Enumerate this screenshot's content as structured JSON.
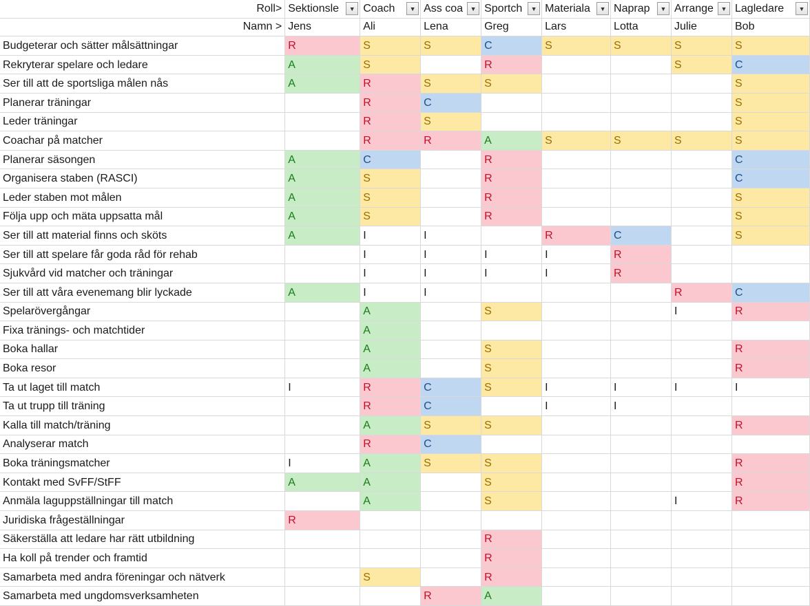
{
  "header": {
    "role_label": "Roll>",
    "name_label": "Namn >",
    "columns": [
      {
        "role": "Sektionsle",
        "name": "Jens"
      },
      {
        "role": "Coach",
        "name": "Ali"
      },
      {
        "role": "Ass coa",
        "name": "Lena"
      },
      {
        "role": "Sportch",
        "name": "Greg"
      },
      {
        "role": "Materiala",
        "name": "Lars"
      },
      {
        "role": "Naprap",
        "name": "Lotta"
      },
      {
        "role": "Arrange",
        "name": "Julie"
      },
      {
        "role": "Lagledare",
        "name": "Bob"
      }
    ]
  },
  "legend_colors": {
    "R": "#fcc8d0",
    "S": "#fde9a3",
    "C": "#bfd7f0",
    "A": "#c7ecc6"
  },
  "rows": [
    {
      "task": "Budgeterar och sätter målsättningar",
      "cells": [
        "R",
        "S",
        "S",
        "C",
        "S",
        "S",
        "S",
        "S"
      ]
    },
    {
      "task": "Rekryterar spelare och ledare",
      "cells": [
        "A",
        "S",
        "",
        "R",
        "",
        "",
        "S",
        "C"
      ]
    },
    {
      "task": "Ser till att de sportsliga målen nås",
      "cells": [
        "A",
        "R",
        "S",
        "S",
        "",
        "",
        "",
        "S"
      ]
    },
    {
      "task": "Planerar träningar",
      "cells": [
        "",
        "R",
        "C",
        "",
        "",
        "",
        "",
        "S"
      ]
    },
    {
      "task": "Leder träningar",
      "cells": [
        "",
        "R",
        "S",
        "",
        "",
        "",
        "",
        "S"
      ]
    },
    {
      "task": "Coachar på matcher",
      "cells": [
        "",
        "R",
        "R",
        "A",
        "S",
        "S",
        "S",
        "S"
      ]
    },
    {
      "task": "Planerar säsongen",
      "cells": [
        "A",
        "C",
        "",
        "R",
        "",
        "",
        "",
        "C"
      ]
    },
    {
      "task": "Organisera staben (RASCI)",
      "cells": [
        "A",
        "S",
        "",
        "R",
        "",
        "",
        "",
        "C"
      ]
    },
    {
      "task": "Leder staben mot målen",
      "cells": [
        "A",
        "S",
        "",
        "R",
        "",
        "",
        "",
        "S"
      ]
    },
    {
      "task": "Följa upp och mäta uppsatta mål",
      "cells": [
        "A",
        "S",
        "",
        "R",
        "",
        "",
        "",
        "S"
      ]
    },
    {
      "task": "Ser till att material finns och sköts",
      "cells": [
        "A",
        "I",
        "I",
        "",
        "R",
        "C",
        "",
        "S"
      ]
    },
    {
      "task": "Ser till att spelare får goda råd för rehab",
      "cells": [
        "",
        "I",
        "I",
        "I",
        "I",
        "R",
        "",
        ""
      ]
    },
    {
      "task": "Sjukvård vid matcher och träningar",
      "cells": [
        "",
        "I",
        "I",
        "I",
        "I",
        "R",
        "",
        ""
      ]
    },
    {
      "task": "Ser till att våra evenemang blir lyckade",
      "cells": [
        "A",
        "I",
        "I",
        "",
        "",
        "",
        "R",
        "C"
      ]
    },
    {
      "task": "Spelarövergångar",
      "cells": [
        "",
        "A",
        "",
        "S",
        "",
        "",
        "I",
        "R"
      ]
    },
    {
      "task": "Fixa tränings- och matchtider",
      "cells": [
        "",
        "A",
        "",
        "",
        "",
        "",
        "",
        ""
      ]
    },
    {
      "task": "Boka hallar",
      "cells": [
        "",
        "A",
        "",
        "S",
        "",
        "",
        "",
        "R"
      ]
    },
    {
      "task": "Boka resor",
      "cells": [
        "",
        "A",
        "",
        "S",
        "",
        "",
        "",
        "R"
      ]
    },
    {
      "task": "Ta ut laget till match",
      "cells": [
        "I",
        "R",
        "C",
        "S",
        "I",
        "I",
        "I",
        "I"
      ]
    },
    {
      "task": "Ta ut trupp till träning",
      "cells": [
        "",
        "R",
        "C",
        "",
        "I",
        "I",
        "",
        ""
      ]
    },
    {
      "task": "Kalla till match/träning",
      "cells": [
        "",
        "A",
        "S",
        "S",
        "",
        "",
        "",
        "R"
      ]
    },
    {
      "task": "Analyserar match",
      "cells": [
        "",
        "R",
        "C",
        "",
        "",
        "",
        "",
        ""
      ]
    },
    {
      "task": "Boka träningsmatcher",
      "cells": [
        "I",
        "A",
        "S",
        "S",
        "",
        "",
        "",
        "R"
      ]
    },
    {
      "task": "Kontakt med SvFF/StFF",
      "cells": [
        "A",
        "A",
        "",
        "S",
        "",
        "",
        "",
        "R"
      ]
    },
    {
      "task": "Anmäla laguppställningar till match",
      "cells": [
        "",
        "A",
        "",
        "S",
        "",
        "",
        "I",
        "R"
      ]
    },
    {
      "task": "Juridiska frågeställningar",
      "cells": [
        "R",
        "",
        "",
        "",
        "",
        "",
        "",
        ""
      ]
    },
    {
      "task": "Säkerställa att ledare har rätt utbildning",
      "cells": [
        "",
        "",
        "",
        "R",
        "",
        "",
        "",
        ""
      ]
    },
    {
      "task": "Ha koll på trender och framtid",
      "cells": [
        "",
        "",
        "",
        "R",
        "",
        "",
        "",
        ""
      ]
    },
    {
      "task": "Samarbeta med andra föreningar och nätverk",
      "cells": [
        "",
        "S",
        "",
        "R",
        "",
        "",
        "",
        ""
      ]
    },
    {
      "task": "Samarbeta med ungdomsverksamheten",
      "cells": [
        "",
        "",
        "R",
        "A",
        "",
        "",
        "",
        ""
      ]
    }
  ]
}
